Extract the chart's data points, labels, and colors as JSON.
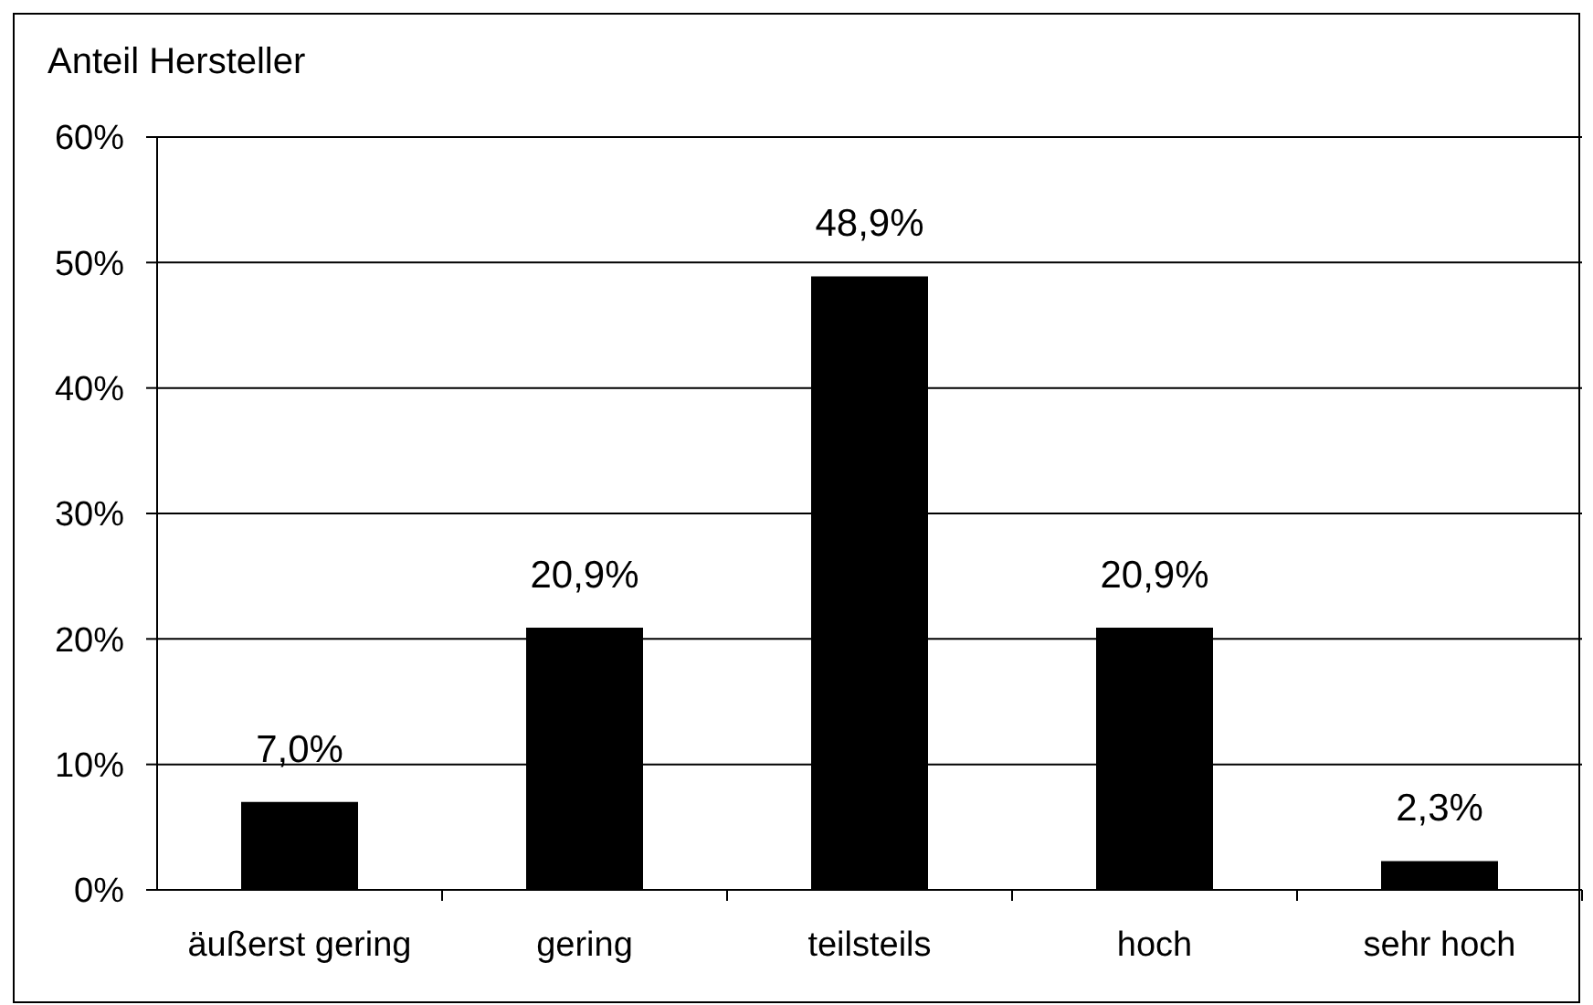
{
  "chart_data": {
    "type": "bar",
    "ylabel": "Anteil Hersteller",
    "categories": [
      "äußerst gering",
      "gering",
      "teilsteils",
      "hoch",
      "sehr hoch"
    ],
    "values": [
      7.0,
      20.9,
      48.9,
      20.9,
      2.3
    ],
    "color": "#000000",
    "value_labels": [
      "7,0%",
      "20,9%",
      "48,9%",
      "20,9%",
      "2,3%"
    ],
    "ylim": [
      0,
      60
    ],
    "yticks": [
      {
        "value": 0,
        "label": "0%"
      },
      {
        "value": 10,
        "label": "10%"
      },
      {
        "value": 20,
        "label": "20%"
      },
      {
        "value": 30,
        "label": "30%"
      },
      {
        "value": 40,
        "label": "40%"
      },
      {
        "value": 50,
        "label": "50%"
      },
      {
        "value": 60,
        "label": "60%"
      }
    ],
    "grid": "y"
  }
}
